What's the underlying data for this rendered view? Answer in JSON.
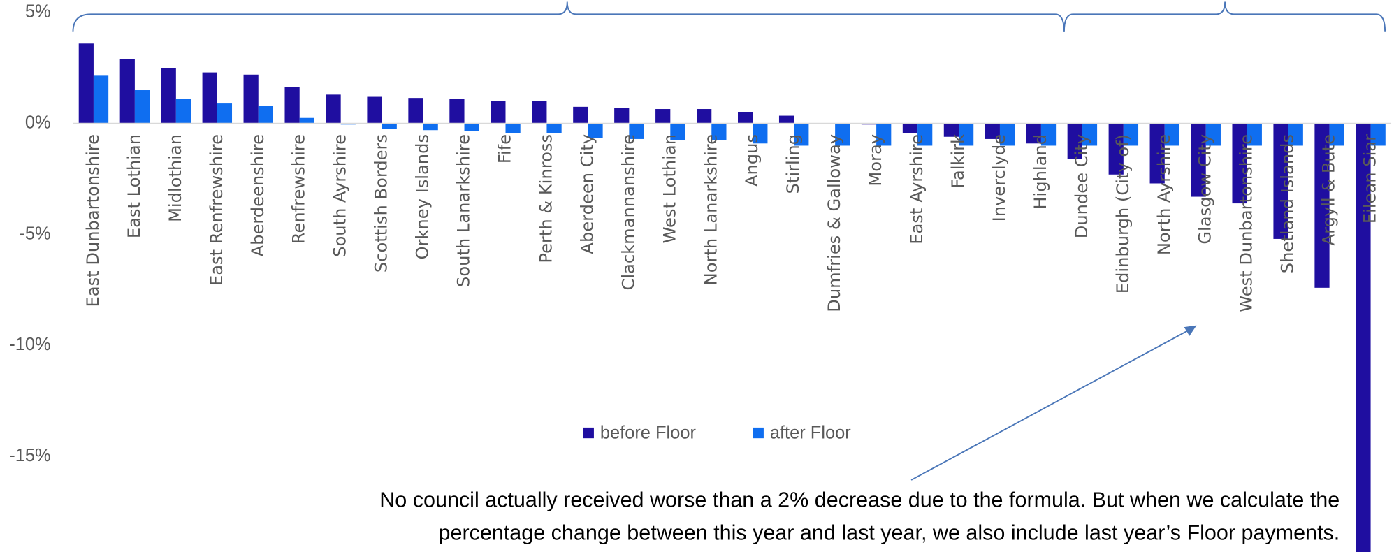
{
  "chart_data": {
    "type": "bar",
    "categories": [
      "East Dunbartonshire",
      "East Lothian",
      "Midlothian",
      "East Renfrewshire",
      "Aberdeenshire",
      "Renfrewshire",
      "South Ayrshire",
      "Scottish Borders",
      "Orkney Islands",
      "South Lanarkshire",
      "Fife",
      "Perth & Kinross",
      "Aberdeen City",
      "Clackmannanshire",
      "West Lothian",
      "North Lanarkshire",
      "Angus",
      "Stirling",
      "Dumfries & Galloway",
      "Moray",
      "East Ayrshire",
      "Falkirk",
      "Inverclyde",
      "Highland",
      "Dundee City",
      "Edinburgh (City of)",
      "North Ayrshire",
      "Glasgow City",
      "West Dunbartonshire",
      "Shetland Islands",
      "Argyll & Bute",
      "Eilean Siar"
    ],
    "series": [
      {
        "name": "before Floor",
        "color": "#1f0ea0",
        "values": [
          3.6,
          2.9,
          2.5,
          2.3,
          2.2,
          1.65,
          1.3,
          1.2,
          1.15,
          1.1,
          1.0,
          1.0,
          0.75,
          0.7,
          0.65,
          0.65,
          0.5,
          0.35,
          0,
          -0.05,
          -0.45,
          -0.6,
          -0.7,
          -0.9,
          -1.6,
          -2.3,
          -2.7,
          -3.3,
          -3.6,
          -5.2,
          -7.4,
          -20
        ]
      },
      {
        "name": "after Floor",
        "color": "#0f6ef0",
        "values": [
          2.15,
          1.5,
          1.1,
          0.9,
          0.8,
          0.25,
          -0.05,
          -0.25,
          -0.3,
          -0.35,
          -0.45,
          -0.45,
          -0.65,
          -0.7,
          -0.75,
          -0.75,
          -0.9,
          -1.0,
          -1.0,
          -1.0,
          -1.0,
          -1.0,
          -1.0,
          -1.0,
          -1.0,
          -1.0,
          -1.0,
          -1.0,
          -1.0,
          -1.0,
          -1.0,
          -1.0
        ]
      }
    ],
    "ylim": [
      -19.3,
      5.56
    ],
    "yticks": [
      {
        "value": 5,
        "label": "5%"
      },
      {
        "value": 0,
        "label": "0%"
      },
      {
        "value": -5,
        "label": "-5%"
      },
      {
        "value": -10,
        "label": "-10%"
      },
      {
        "value": -15,
        "label": "-15%"
      }
    ],
    "legend": "center",
    "annotations": [
      "No council actually received worse than a 2% decrease due to the formula. But when we calculate the",
      "percentage change between this year and last year, we also include last year’s Floor payments."
    ]
  }
}
